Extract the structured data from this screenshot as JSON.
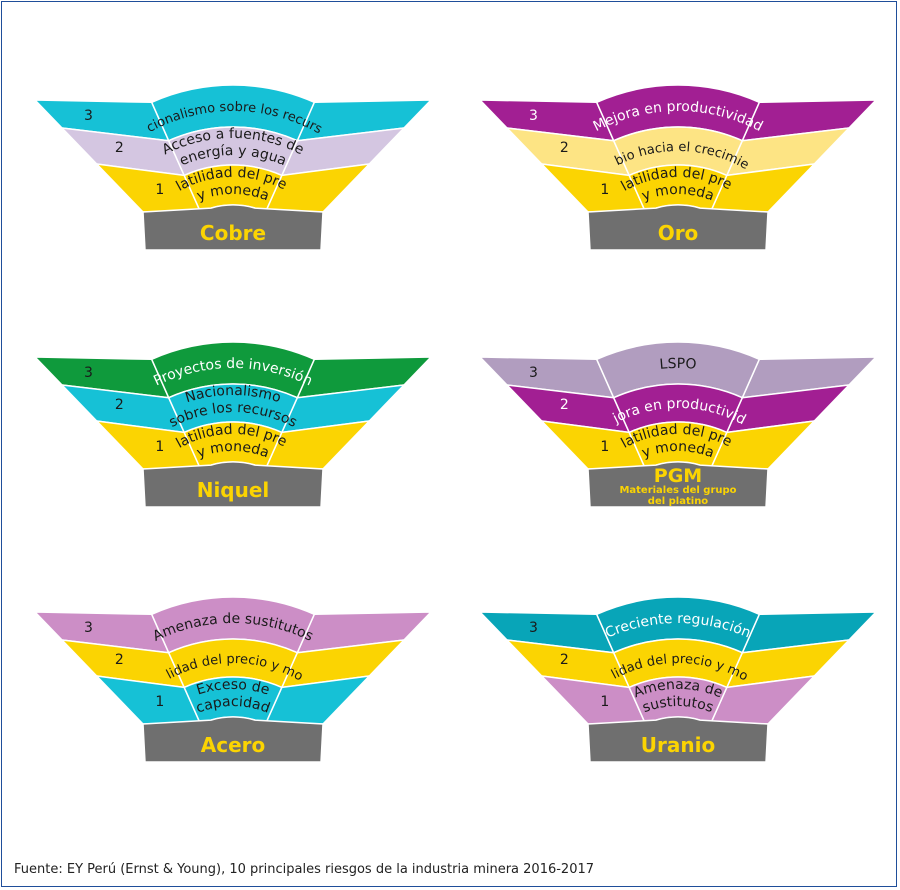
{
  "colors": {
    "cyan": "#16c1d6",
    "lavender": "#d4c6e1",
    "yellow": "#fbd402",
    "lightyellow": "#fde484",
    "purple": "#a21f93",
    "green": "#0f9a3c",
    "greyviolet": "#b19dbf",
    "pink": "#cc8ec6",
    "teal": "#08a5b8",
    "base": "#6f6f6f",
    "baseText": "#fbd402"
  },
  "source": "Fuente:  EY Perú (Ernst & Young), 10 principales riesgos de la industria minera 2016-2017",
  "panels": [
    {
      "metal": "Cobre",
      "metal_sub": [],
      "bands": [
        {
          "rank": "3",
          "color": "cyan",
          "text": [
            "Nacionalismo sobre los recursos"
          ],
          "textColor": "#1a1a1a"
        },
        {
          "rank": "2",
          "color": "lavender",
          "text": [
            "Acceso a fuentes de",
            "energía y agua"
          ],
          "textColor": "#1a1a1a"
        },
        {
          "rank": "1",
          "color": "yellow",
          "text": [
            "Volatilidad del precio",
            "y moneda"
          ],
          "textColor": "#1a1a1a"
        }
      ]
    },
    {
      "metal": "Oro",
      "metal_sub": [],
      "bands": [
        {
          "rank": "3",
          "color": "purple",
          "text": [
            "Mejora en productividad"
          ],
          "textColor": "#ffffff"
        },
        {
          "rank": "2",
          "color": "lightyellow",
          "text": [
            "Cambio hacia el crecimiento"
          ],
          "textColor": "#1a1a1a"
        },
        {
          "rank": "1",
          "color": "yellow",
          "text": [
            "Volatilidad del precio",
            "y moneda"
          ],
          "textColor": "#1a1a1a"
        }
      ]
    },
    {
      "metal": "Niquel",
      "metal_sub": [],
      "bands": [
        {
          "rank": "3",
          "color": "green",
          "text": [
            "Proyectos de inversión"
          ],
          "textColor": "#ffffff"
        },
        {
          "rank": "2",
          "color": "cyan",
          "text": [
            "Nacionalismo",
            "sobre los recursos"
          ],
          "textColor": "#1a1a1a"
        },
        {
          "rank": "1",
          "color": "yellow",
          "text": [
            "Volatilidad del precio",
            "y moneda"
          ],
          "textColor": "#1a1a1a"
        }
      ]
    },
    {
      "metal": "PGM",
      "metal_sub": [
        "Materiales del grupo",
        "del platino"
      ],
      "bands": [
        {
          "rank": "3",
          "color": "greyviolet",
          "text": [
            "LSPO"
          ],
          "textColor": "#1a1a1a"
        },
        {
          "rank": "2",
          "color": "purple",
          "text": [
            "Mejora en productividad"
          ],
          "textColor": "#ffffff"
        },
        {
          "rank": "1",
          "color": "yellow",
          "text": [
            "Volatilidad del precio",
            "y moneda"
          ],
          "textColor": "#1a1a1a"
        }
      ]
    },
    {
      "metal": "Acero",
      "metal_sub": [],
      "bands": [
        {
          "rank": "3",
          "color": "pink",
          "text": [
            "Amenaza de sustitutos"
          ],
          "textColor": "#1a1a1a"
        },
        {
          "rank": "2",
          "color": "yellow",
          "text": [
            "Volatilidad del precio y moneda"
          ],
          "textColor": "#1a1a1a"
        },
        {
          "rank": "1",
          "color": "cyan",
          "text": [
            "Exceso de",
            "capacidad"
          ],
          "textColor": "#1a1a1a"
        }
      ]
    },
    {
      "metal": "Uranio",
      "metal_sub": [],
      "bands": [
        {
          "rank": "3",
          "color": "teal",
          "text": [
            "Creciente regulación"
          ],
          "textColor": "#ffffff"
        },
        {
          "rank": "2",
          "color": "yellow",
          "text": [
            "Volatilidad del precio y moneda"
          ],
          "textColor": "#1a1a1a"
        },
        {
          "rank": "1",
          "color": "pink",
          "text": [
            "Amenaza de",
            "sustitutos"
          ],
          "textColor": "#1a1a1a"
        }
      ]
    }
  ]
}
